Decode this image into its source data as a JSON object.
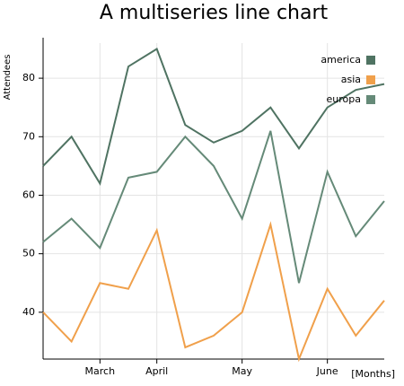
{
  "chart_data": {
    "type": "line",
    "title": "A multiseries line chart",
    "y_label": "Attendees",
    "x_label": "[Months]",
    "categories": [
      null,
      null,
      "March",
      null,
      "April",
      null,
      null,
      "May",
      null,
      null,
      "June",
      null,
      null
    ],
    "series": [
      {
        "name": "america",
        "color": "#4f7362",
        "values": [
          65,
          70,
          62,
          82,
          85,
          72,
          69,
          71,
          75,
          68,
          75,
          78,
          79
        ]
      },
      {
        "name": "asia",
        "color": "#f0a04b",
        "values": [
          40,
          35,
          45,
          44,
          54,
          34,
          36,
          40,
          55,
          32,
          44,
          36,
          42
        ]
      },
      {
        "name": "europa",
        "color": "#658a78",
        "values": [
          52,
          56,
          51,
          63,
          64,
          70,
          65,
          56,
          71,
          45,
          64,
          53,
          59
        ]
      }
    ],
    "ylim": [
      32,
      86
    ],
    "yticks": [
      40,
      50,
      60,
      70,
      80
    ],
    "grid": true
  }
}
